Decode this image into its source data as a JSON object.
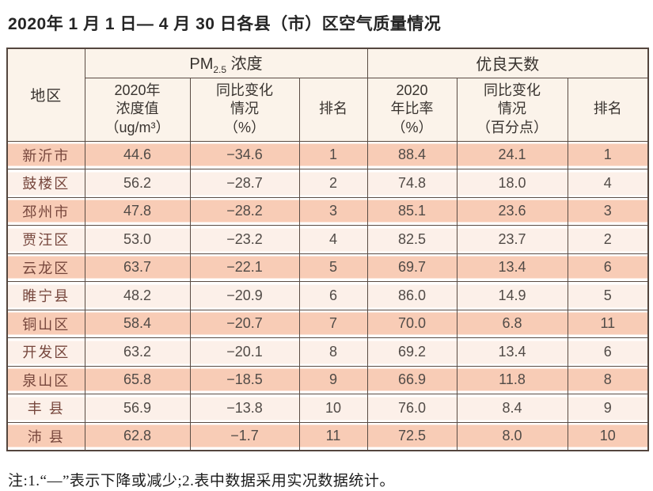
{
  "title": "2020年 1 月 1 日— 4 月 30 日各县（市）区空气质量情况",
  "note": "注:1.“—”表示下降或减少;2.表中数据采用实况数据统计。",
  "colors": {
    "band_dark": "#f8ccb6",
    "band_light": "#fcf0e9",
    "header_bg": "#fbf3ea",
    "grid_line": "#5a4c44",
    "region_text": "#76463c"
  },
  "table": {
    "region_header": "地区",
    "pm_group": {
      "prefix": "PM",
      "sub": "2.5",
      "suffix": " 浓度"
    },
    "good_days_group": "优良天数",
    "subheaders": {
      "pm_value": "2020年\n浓度值\n（ug/m³）",
      "pm_change": "同比变化\n情况\n（%）",
      "pm_rank": "排名",
      "good_rate": "2020\n年比率\n（%）",
      "good_change": "同比变化\n情况\n（百分点）",
      "good_rank": "排名"
    },
    "rows": [
      [
        "新沂市",
        "44.6",
        "−34.6",
        "1",
        "88.4",
        "24.1",
        "1"
      ],
      [
        "鼓楼区",
        "56.2",
        "−28.7",
        "2",
        "74.8",
        "18.0",
        "4"
      ],
      [
        "邳州市",
        "47.8",
        "−28.2",
        "3",
        "85.1",
        "23.6",
        "3"
      ],
      [
        "贾汪区",
        "53.0",
        "−23.2",
        "4",
        "82.5",
        "23.7",
        "2"
      ],
      [
        "云龙区",
        "63.7",
        "−22.1",
        "5",
        "69.7",
        "13.4",
        "6"
      ],
      [
        "睢宁县",
        "48.2",
        "−20.9",
        "6",
        "86.0",
        "14.9",
        "5"
      ],
      [
        "铜山区",
        "58.4",
        "−20.7",
        "7",
        "70.0",
        "6.8",
        "11"
      ],
      [
        "开发区",
        "63.2",
        "−20.1",
        "8",
        "69.2",
        "13.4",
        "6"
      ],
      [
        "泉山区",
        "65.8",
        "−18.5",
        "9",
        "66.9",
        "11.8",
        "8"
      ],
      [
        "丰 县",
        "56.9",
        "−13.8",
        "10",
        "76.0",
        "8.4",
        "9"
      ],
      [
        "沛 县",
        "62.8",
        "−1.7",
        "11",
        "72.5",
        "8.0",
        "10"
      ]
    ]
  }
}
